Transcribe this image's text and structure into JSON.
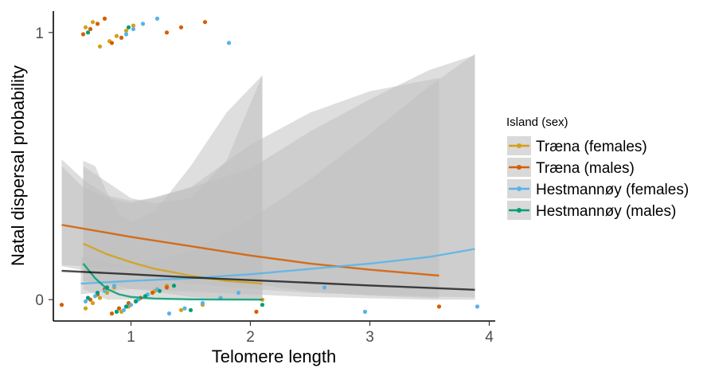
{
  "chart_data": {
    "type": "scatter",
    "xlabel": "Telomere length",
    "ylabel": "Natal dispersal probability",
    "xlim": [
      0.35,
      4.05
    ],
    "ylim": [
      -0.08,
      1.08
    ],
    "x_ticks": [
      1,
      2,
      3,
      4
    ],
    "y_ticks": [
      0,
      1
    ],
    "x_tick_labels": [
      "1",
      "2",
      "3",
      "4"
    ],
    "y_tick_labels": [
      "0",
      "1"
    ],
    "grid": false,
    "legend": {
      "title": "Island (sex)",
      "position": "right",
      "entries": [
        "Træna (females)",
        "Træna (males)",
        "Hestmannøy (females)",
        "Hestmannøy (males)"
      ]
    },
    "colors": {
      "traena_females": "#D4A017",
      "traena_males": "#D55E00",
      "hestmannoy_females": "#56B4E9",
      "hestmannoy_males": "#009E73",
      "overall_fit": "#000000",
      "ribbon": "#bdbdbd"
    },
    "overall_fit": {
      "line": [
        [
          0.42,
          0.108
        ],
        [
          1.0,
          0.095
        ],
        [
          1.5,
          0.083
        ],
        [
          2.0,
          0.073
        ],
        [
          2.5,
          0.063
        ],
        [
          3.0,
          0.053
        ],
        [
          3.5,
          0.044
        ],
        [
          3.88,
          0.037
        ]
      ],
      "ci": [
        [
          0.42,
          0.125,
          0.525
        ],
        [
          0.6,
          0.11,
          0.45
        ],
        [
          0.8,
          0.098,
          0.39
        ],
        [
          1.0,
          0.09,
          0.37
        ],
        [
          1.2,
          0.08,
          0.38
        ],
        [
          1.5,
          0.06,
          0.42
        ],
        [
          2.0,
          0.04,
          0.49
        ],
        [
          2.5,
          0.025,
          0.63
        ],
        [
          3.0,
          0.018,
          0.75
        ],
        [
          3.5,
          0.012,
          0.86
        ],
        [
          3.88,
          0.008,
          0.915
        ]
      ]
    },
    "series": [
      {
        "name": "Træna (females)",
        "color": "#D4A017",
        "fit": [
          [
            0.6,
            0.21
          ],
          [
            0.8,
            0.17
          ],
          [
            1.0,
            0.14
          ],
          [
            1.2,
            0.115
          ],
          [
            1.5,
            0.09
          ],
          [
            1.8,
            0.07
          ],
          [
            2.1,
            0.06
          ]
        ],
        "ci": [
          [
            0.6,
            0.07,
            0.5
          ],
          [
            0.8,
            0.06,
            0.44
          ],
          [
            1.0,
            0.04,
            0.38
          ],
          [
            1.2,
            0.03,
            0.36
          ],
          [
            1.5,
            0.01,
            0.38
          ],
          [
            1.8,
            0.005,
            0.52
          ],
          [
            2.1,
            0.0,
            0.84
          ]
        ],
        "points": [
          [
            0.62,
            0
          ],
          [
            0.68,
            0
          ],
          [
            0.74,
            0
          ],
          [
            0.8,
            0
          ],
          [
            0.86,
            0
          ],
          [
            0.92,
            0
          ],
          [
            0.98,
            0
          ],
          [
            1.04,
            0
          ],
          [
            1.12,
            0
          ],
          [
            1.2,
            0
          ],
          [
            1.3,
            0
          ],
          [
            1.42,
            0
          ],
          [
            1.6,
            0
          ],
          [
            2.1,
            0
          ],
          [
            0.62,
            1
          ],
          [
            0.68,
            1
          ],
          [
            0.74,
            1
          ],
          [
            0.82,
            1
          ],
          [
            0.88,
            1
          ],
          [
            0.96,
            1
          ],
          [
            1.02,
            1
          ]
        ]
      },
      {
        "name": "Træna (males)",
        "color": "#D55E00",
        "fit": [
          [
            0.42,
            0.28
          ],
          [
            1.0,
            0.235
          ],
          [
            1.5,
            0.2
          ],
          [
            2.0,
            0.165
          ],
          [
            2.5,
            0.135
          ],
          [
            3.0,
            0.112
          ],
          [
            3.58,
            0.09
          ]
        ],
        "ci": [
          [
            0.42,
            0.13,
            0.5
          ],
          [
            0.6,
            0.125,
            0.42
          ],
          [
            0.8,
            0.12,
            0.38
          ],
          [
            1.0,
            0.12,
            0.36
          ],
          [
            1.5,
            0.1,
            0.42
          ],
          [
            2.0,
            0.06,
            0.58
          ],
          [
            2.5,
            0.03,
            0.7
          ],
          [
            3.0,
            0.015,
            0.78
          ],
          [
            3.58,
            0.005,
            0.83
          ]
        ],
        "points": [
          [
            0.42,
            0
          ],
          [
            0.66,
            0
          ],
          [
            0.72,
            0
          ],
          [
            0.78,
            0
          ],
          [
            0.84,
            0
          ],
          [
            0.9,
            0
          ],
          [
            0.98,
            0
          ],
          [
            1.08,
            0
          ],
          [
            1.18,
            0
          ],
          [
            1.3,
            0
          ],
          [
            2.05,
            0
          ],
          [
            3.58,
            0
          ],
          [
            0.6,
            1
          ],
          [
            0.66,
            1
          ],
          [
            0.72,
            1
          ],
          [
            0.78,
            1
          ],
          [
            0.84,
            1
          ],
          [
            0.92,
            1
          ],
          [
            1.3,
            1
          ],
          [
            1.42,
            1
          ],
          [
            1.62,
            1
          ]
        ]
      },
      {
        "name": "Hestmannøy (females)",
        "color": "#56B4E9",
        "fit": [
          [
            0.58,
            0.06
          ],
          [
            1.0,
            0.07
          ],
          [
            1.5,
            0.08
          ],
          [
            2.0,
            0.095
          ],
          [
            2.5,
            0.115
          ],
          [
            3.0,
            0.135
          ],
          [
            3.5,
            0.16
          ],
          [
            3.88,
            0.19
          ]
        ],
        "ci": [
          [
            0.58,
            0.02,
            0.16
          ],
          [
            1.0,
            0.04,
            0.12
          ],
          [
            1.5,
            0.03,
            0.18
          ],
          [
            2.0,
            0.02,
            0.3
          ],
          [
            2.5,
            0.01,
            0.45
          ],
          [
            3.0,
            0.005,
            0.62
          ],
          [
            3.5,
            0.0,
            0.8
          ],
          [
            3.88,
            0.0,
            0.92
          ]
        ],
        "points": [
          [
            0.62,
            0
          ],
          [
            0.7,
            0
          ],
          [
            0.78,
            0
          ],
          [
            0.86,
            0
          ],
          [
            0.94,
            0
          ],
          [
            1.0,
            0
          ],
          [
            1.06,
            0
          ],
          [
            1.14,
            0
          ],
          [
            1.22,
            0
          ],
          [
            1.32,
            0
          ],
          [
            1.45,
            0
          ],
          [
            1.6,
            0
          ],
          [
            1.75,
            0
          ],
          [
            1.9,
            0
          ],
          [
            2.62,
            0
          ],
          [
            2.96,
            0
          ],
          [
            3.9,
            0
          ],
          [
            0.96,
            1
          ],
          [
            1.02,
            1
          ],
          [
            1.1,
            1
          ],
          [
            1.22,
            1
          ],
          [
            1.82,
            1
          ]
        ]
      },
      {
        "name": "Hestmannøy (males)",
        "color": "#009E73",
        "fit": [
          [
            0.6,
            0.135
          ],
          [
            0.7,
            0.08
          ],
          [
            0.8,
            0.04
          ],
          [
            0.9,
            0.02
          ],
          [
            1.0,
            0.01
          ],
          [
            1.2,
            0.004
          ],
          [
            1.5,
            0.001
          ],
          [
            2.1,
            0.0
          ]
        ],
        "ci": [
          [
            0.6,
            0.04,
            0.52
          ],
          [
            0.7,
            0.02,
            0.5
          ],
          [
            0.8,
            0.0,
            0.4
          ],
          [
            0.9,
            0.0,
            0.32
          ],
          [
            1.0,
            0.0,
            0.29
          ],
          [
            1.2,
            0.0,
            0.33
          ],
          [
            1.5,
            0.0,
            0.5
          ],
          [
            1.8,
            0.0,
            0.7
          ],
          [
            2.1,
            0.0,
            0.84
          ]
        ],
        "points": [
          [
            0.64,
            0
          ],
          [
            0.72,
            0
          ],
          [
            0.8,
            0
          ],
          [
            0.88,
            0
          ],
          [
            0.96,
            0
          ],
          [
            1.04,
            0
          ],
          [
            1.12,
            0
          ],
          [
            1.24,
            0
          ],
          [
            1.36,
            0
          ],
          [
            1.5,
            0
          ],
          [
            2.1,
            0
          ],
          [
            0.64,
            1
          ],
          [
            0.98,
            1
          ]
        ]
      }
    ]
  }
}
